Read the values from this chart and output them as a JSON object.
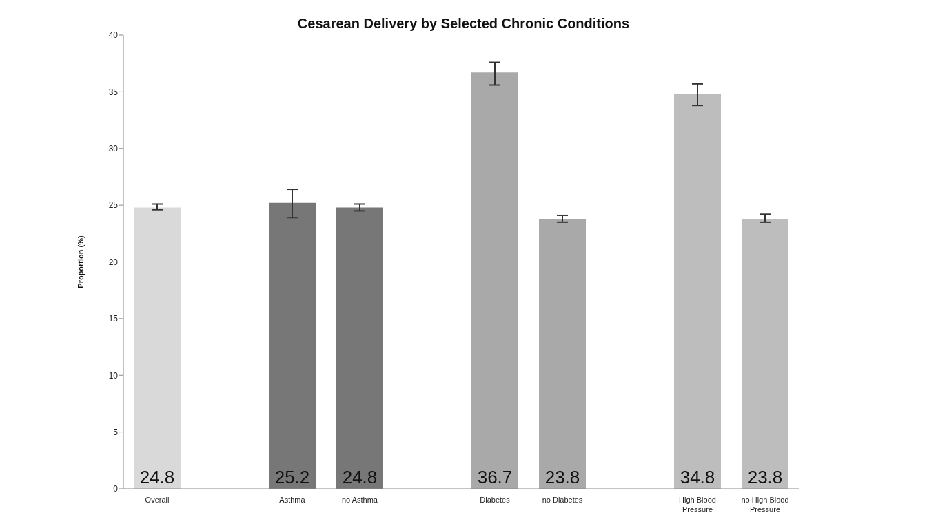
{
  "chart_data": {
    "type": "bar",
    "title": "Cesarean Delivery by Selected Chronic Conditions",
    "ylabel": "Proportion (%)",
    "categories": [
      "Overall",
      null,
      "Asthma",
      "no Asthma",
      null,
      "Diabetes",
      "no Diabetes",
      null,
      "High Blood Pressure",
      "no High Blood Pressure"
    ],
    "values": [
      24.8,
      null,
      25.2,
      24.8,
      null,
      36.7,
      23.8,
      null,
      34.8,
      23.8
    ],
    "colors": [
      "#d9d9d9",
      null,
      "#777777",
      "#777777",
      null,
      "#a9a9a9",
      "#a9a9a9",
      null,
      "#bdbdbd",
      "#bdbdbd"
    ],
    "errors": [
      [
        24.6,
        25.1
      ],
      null,
      [
        23.9,
        26.4
      ],
      [
        24.5,
        25.1
      ],
      null,
      [
        35.6,
        37.6
      ],
      [
        23.5,
        24.1
      ],
      null,
      [
        33.8,
        35.7
      ],
      [
        23.5,
        24.2
      ]
    ],
    "data_labels": true,
    "ylim": [
      0,
      40
    ],
    "yticks": [
      0,
      5,
      10,
      15,
      20,
      25,
      30,
      35,
      40
    ],
    "grid": false,
    "legend": false
  }
}
